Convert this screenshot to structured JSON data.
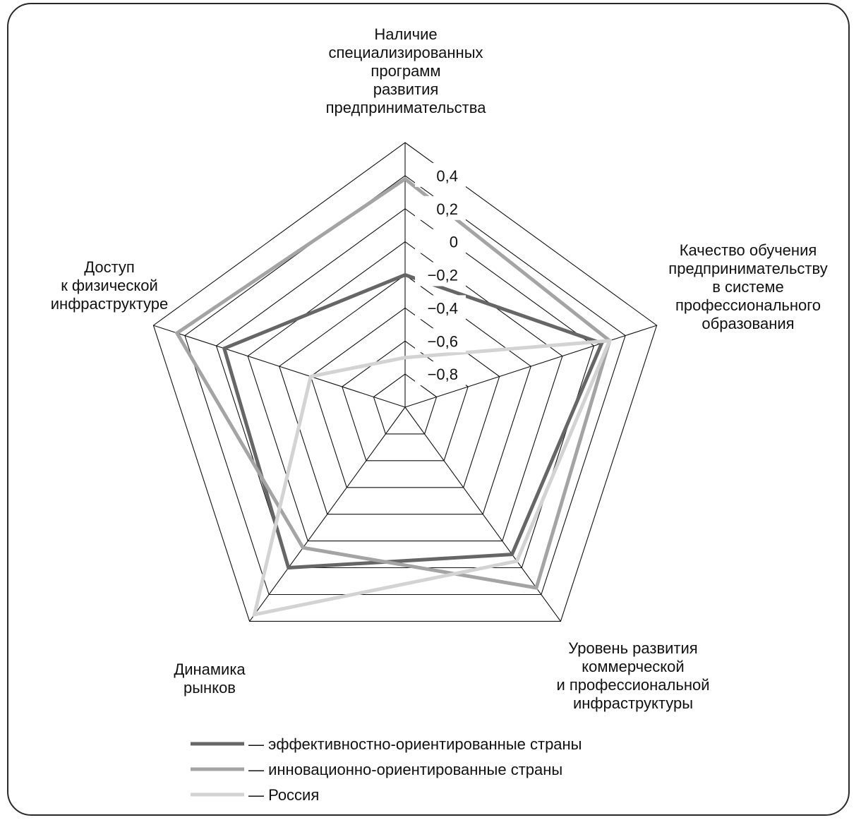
{
  "chart_data": {
    "type": "radar",
    "axes": [
      "Наличие специализированных программ развития предпринимательства",
      "Качество обучения предпринимательству в системе профессионального образования",
      "Уровень развития коммерческой и профессиональной инфраструктуры",
      "Динамика рынков",
      "Доступ к физической инфраструктуре"
    ],
    "axis_label_lines": [
      [
        "Наличие",
        "специализированных",
        "программ",
        "развития",
        "предпринимательства"
      ],
      [
        "Качество обучения",
        "предпринимательству",
        "в системе",
        "профессионального",
        "образования"
      ],
      [
        "Уровень развития",
        "коммерческой",
        "и профессиональной",
        "инфраструктуры"
      ],
      [
        "Динамика",
        "рынков"
      ],
      [
        "Доступ",
        "к физической",
        "инфраструктуре"
      ]
    ],
    "rlim": [
      -1.0,
      0.6
    ],
    "ticks": [
      0.4,
      0.2,
      0,
      -0.2,
      -0.4,
      -0.6,
      -0.8
    ],
    "tick_labels": [
      "0,4",
      "0,2",
      "0",
      "−0,2",
      "−0,4",
      "−0,6",
      "−0,8"
    ],
    "grid": true,
    "legend_position": "bottom-left",
    "series": [
      {
        "name": "— эффективностно-ориентированные страны",
        "values": [
          -0.2,
          0.25,
          0.1,
          0.2,
          0.15
        ],
        "color": "#666666"
      },
      {
        "name": "— инновационно-ориентированные страны",
        "values": [
          0.38,
          0.3,
          0.35,
          0.05,
          0.45
        ],
        "color": "#a4a4a4"
      },
      {
        "name": "— Россия",
        "values": [
          -0.7,
          0.3,
          0.15,
          0.55,
          -0.4
        ],
        "color": "#d3d3d3"
      }
    ]
  }
}
